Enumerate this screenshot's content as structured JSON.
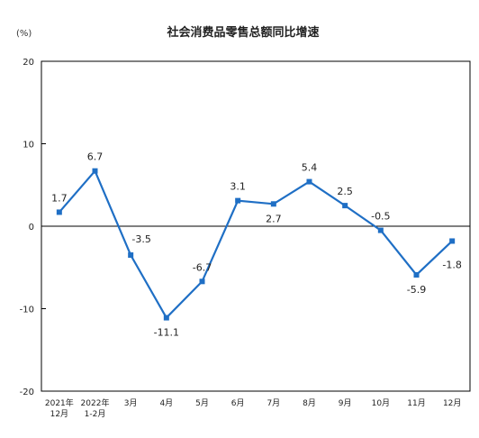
{
  "chart_data": {
    "type": "line",
    "title": "社会消费品零售总额同比增速",
    "unit_label": "(%)",
    "categories": [
      [
        "2021年",
        "12月"
      ],
      [
        "2022年",
        "1-2月"
      ],
      [
        "3月"
      ],
      [
        "4月"
      ],
      [
        "5月"
      ],
      [
        "6月"
      ],
      [
        "7月"
      ],
      [
        "8月"
      ],
      [
        "9月"
      ],
      [
        "10月"
      ],
      [
        "11月"
      ],
      [
        "12月"
      ]
    ],
    "series": [
      {
        "values": [
          1.7,
          6.7,
          -3.5,
          -11.1,
          -6.7,
          3.1,
          2.7,
          5.4,
          2.5,
          -0.5,
          -5.9,
          -1.8
        ],
        "labels": [
          "1.7",
          "6.7",
          "-3.5",
          "-11.1",
          "-6.7",
          "3.1",
          "2.7",
          "5.4",
          "2.5",
          "-0.5",
          "-5.9",
          "-1.8"
        ],
        "color": "#1f6fc5"
      }
    ],
    "yticks": [
      20,
      10,
      0,
      -10,
      -20
    ],
    "ylim": [
      -20,
      20
    ],
    "grid": false,
    "legend": "none"
  }
}
